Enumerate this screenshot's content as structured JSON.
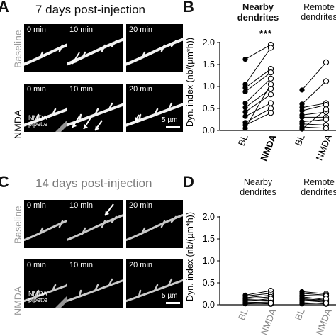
{
  "panel_A": {
    "letter": "A",
    "title": "7 days post-injection",
    "row_labels": [
      "Baseline",
      "NMDA"
    ],
    "times": [
      "0 min",
      "10 min",
      "20 min"
    ],
    "pipette_label": "NMDA\npipette",
    "scale_label": "5 µm"
  },
  "panel_B": {
    "letter": "B",
    "group_nearby": "Nearby\ndendrites",
    "group_remote": "Remote\ndendrites",
    "significance": "***",
    "xlabels": [
      "BL",
      "NMDA",
      "BL",
      "NMDA"
    ]
  },
  "panel_C": {
    "letter": "C",
    "title": "14 days post-injection",
    "row_labels": [
      "Baseline",
      "NMDA"
    ],
    "times": [
      "0 min",
      "10 min",
      "20 min"
    ],
    "pipette_label": "NMDA\npipette",
    "scale_label": "5 µm"
  },
  "panel_D": {
    "letter": "D",
    "group_nearby": "Nearby\ndendrites",
    "group_remote": "Remote\ndendrites",
    "xlabels": [
      "BL",
      "NMDA",
      "BL",
      "NMDA"
    ]
  },
  "chart_data": [
    {
      "type": "scatter",
      "panel": "B",
      "ylabel": "Dyn. index (nb/(µm*h))",
      "ylim": [
        0,
        2.0
      ],
      "yticks": [
        0.0,
        0.5,
        1.0,
        1.5,
        2.0
      ],
      "ytick_labels": [
        "0.0",
        "0.5",
        "1.0",
        "1.5",
        "2.0"
      ],
      "categories": [
        "BL",
        "NMDA",
        "BL",
        "NMDA"
      ],
      "series": [
        {
          "group": "Nearby dendrites",
          "pairs": [
            [
              1.62,
              1.95
            ],
            [
              1.05,
              1.88
            ],
            [
              0.97,
              1.4
            ],
            [
              0.88,
              1.32
            ],
            [
              0.62,
              1.18
            ],
            [
              0.52,
              0.95
            ],
            [
              0.42,
              0.82
            ],
            [
              0.32,
              0.62
            ],
            [
              0.18,
              0.5
            ],
            [
              0.12,
              0.4
            ],
            [
              0.05,
              1.05
            ]
          ]
        },
        {
          "group": "Remote dendrites",
          "pairs": [
            [
              0.92,
              1.55
            ],
            [
              0.6,
              1.12
            ],
            [
              0.52,
              0.62
            ],
            [
              0.45,
              0.58
            ],
            [
              0.35,
              0.42
            ],
            [
              0.3,
              0.3
            ],
            [
              0.2,
              0.25
            ],
            [
              0.15,
              0.12
            ],
            [
              0.08,
              0.05
            ],
            [
              0.03,
              0.48
            ]
          ]
        }
      ]
    },
    {
      "type": "scatter",
      "panel": "D",
      "ylabel": "Dyn. index (nb/(µm*h))",
      "ylim": [
        0,
        2.0
      ],
      "yticks": [
        0.0,
        0.5,
        1.0,
        1.5,
        2.0
      ],
      "ytick_labels": [
        "0.0",
        "0.5",
        "1.0",
        "1.5",
        "2.0"
      ],
      "categories": [
        "BL",
        "NMDA",
        "BL",
        "NMDA"
      ],
      "series": [
        {
          "group": "Nearby dendrites",
          "pairs": [
            [
              0.22,
              0.32
            ],
            [
              0.2,
              0.26
            ],
            [
              0.16,
              0.22
            ],
            [
              0.14,
              0.18
            ],
            [
              0.12,
              0.1
            ],
            [
              0.1,
              0.08
            ],
            [
              0.08,
              0.14
            ],
            [
              0.06,
              0.05
            ],
            [
              0.04,
              0.02
            ],
            [
              0.02,
              0.04
            ]
          ]
        },
        {
          "group": "Remote dendrites",
          "pairs": [
            [
              0.3,
              0.25
            ],
            [
              0.26,
              0.22
            ],
            [
              0.22,
              0.2
            ],
            [
              0.18,
              0.12
            ],
            [
              0.14,
              0.1
            ],
            [
              0.12,
              0.08
            ],
            [
              0.1,
              0.06
            ],
            [
              0.08,
              0.14
            ],
            [
              0.05,
              0.02
            ],
            [
              0.02,
              0.04
            ]
          ]
        }
      ]
    }
  ]
}
